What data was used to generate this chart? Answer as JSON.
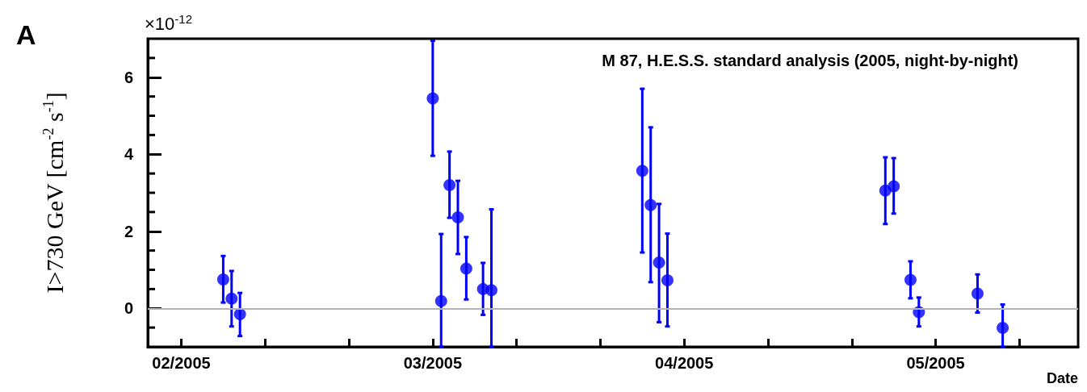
{
  "chart_data": {
    "type": "scatter",
    "title": "M 87, H.E.S.S. standard analysis (2005, night-by-night)",
    "xlabel": "Date",
    "ylabel": "I>730 GeV [cm$^{-2}$ s$^{-1}$]",
    "annotations": [
      "A",
      "×10$^{-12}$"
    ],
    "x": [
      "2005-02-06",
      "2005-02-07",
      "2005-02-08",
      "2005-03-03",
      "2005-03-04",
      "2005-03-05",
      "2005-03-06",
      "2005-03-07",
      "2005-03-09",
      "2005-03-10",
      "2005-03-28",
      "2005-03-29",
      "2005-03-30",
      "2005-03-31",
      "2005-04-26",
      "2005-04-27",
      "2005-04-29",
      "2005-04-30",
      "2005-05-07",
      "2005-05-10"
    ],
    "series": [
      {
        "color": "#0000ff",
        "values": [
          0.75,
          0.25,
          -0.15,
          5.45,
          0.19,
          3.2,
          2.36,
          1.03,
          0.5,
          0.47,
          3.57,
          2.68,
          1.19,
          0.73,
          3.06,
          3.17,
          0.74,
          -0.1,
          0.38,
          -0.51
        ],
        "errors": [
          [
            0.15,
            1.36
          ],
          [
            -0.47,
            0.97
          ],
          [
            -0.72,
            0.4
          ],
          [
            3.96,
            6.95
          ],
          [
            -1,
            1.93
          ],
          [
            2.35,
            4.07
          ],
          [
            1.41,
            3.31
          ],
          [
            0.23,
            1.85
          ],
          [
            -0.17,
            1.18
          ],
          [
            -1,
            2.57
          ],
          [
            1.45,
            5.7
          ],
          [
            0.68,
            4.7
          ],
          [
            -0.36,
            2.71
          ],
          [
            -0.47,
            1.94
          ],
          [
            2.19,
            3.92
          ],
          [
            2.46,
            3.9
          ],
          [
            0.26,
            1.22
          ],
          [
            -0.47,
            0.28
          ],
          [
            -0.11,
            0.88
          ],
          [
            -1,
            0.1
          ]
        ]
      }
    ],
    "marker": "circle",
    "xlim": [
      "2005-01-28",
      "2005-05-19"
    ],
    "xticks": [
      {
        "value": "2005-02-01",
        "label": "02/2005"
      },
      {
        "value": "2005-02-11",
        "label": null
      },
      {
        "value": "2005-02-21",
        "label": null
      },
      {
        "value": "2005-03-03",
        "label": "03/2005"
      },
      {
        "value": "2005-03-13",
        "label": null
      },
      {
        "value": "2005-03-23",
        "label": null
      },
      {
        "value": "2005-04-02",
        "label": "04/2005"
      },
      {
        "value": "2005-04-12",
        "label": null
      },
      {
        "value": "2005-04-22",
        "label": null
      },
      {
        "value": "2005-05-02",
        "label": "05/2005"
      },
      {
        "value": "2005-05-12",
        "label": null
      }
    ],
    "ylim": [
      -1,
      7
    ],
    "yticks": [
      {
        "value": -0.5,
        "label": null
      },
      0,
      {
        "value": 0.5,
        "label": null
      },
      {
        "value": 1,
        "label": null
      },
      {
        "value": 1.5,
        "label": null
      },
      2,
      {
        "value": 2.5,
        "label": null
      },
      {
        "value": 3,
        "label": null
      },
      {
        "value": 3.5,
        "label": null
      },
      4,
      {
        "value": 4.5,
        "label": null
      },
      {
        "value": 5,
        "label": null
      },
      {
        "value": 5.5,
        "label": null
      },
      6,
      {
        "value": 6.5,
        "label": null
      }
    ],
    "ref_lines": [
      {
        "axis": "y",
        "value": 0,
        "color": "#b4b4b4"
      }
    ],
    "grid": false
  }
}
